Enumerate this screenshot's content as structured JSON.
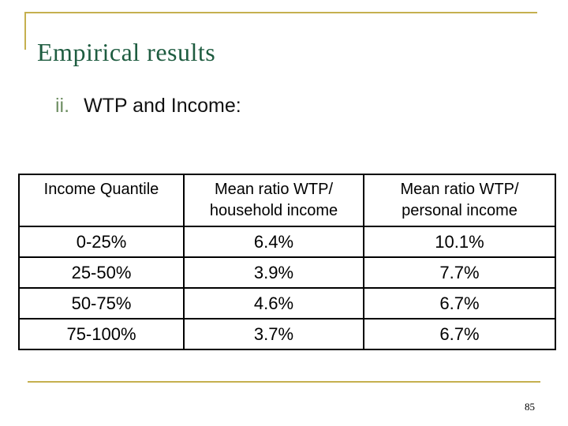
{
  "slide": {
    "title": "Empirical results",
    "list_marker": "ii.",
    "subtitle": "WTP and Income:",
    "page_number": "85"
  },
  "table": {
    "headers": [
      "Income Quantile",
      "Mean ratio WTP/\nhousehold income",
      "Mean ratio WTP/\npersonal income"
    ],
    "rows": [
      [
        "0-25%",
        "6.4%",
        "10.1%"
      ],
      [
        "25-50%",
        "3.9%",
        "7.7%"
      ],
      [
        "50-75%",
        "4.6%",
        "6.7%"
      ],
      [
        "75-100%",
        "3.7%",
        "6.7%"
      ]
    ]
  },
  "colors": {
    "accent_gold": "#C5B04F",
    "title_green": "#1E5C40",
    "list_marker_green": "#6F8F63",
    "table_border": "#000000",
    "body_text": "#000000",
    "background": "#FFFFFF"
  }
}
